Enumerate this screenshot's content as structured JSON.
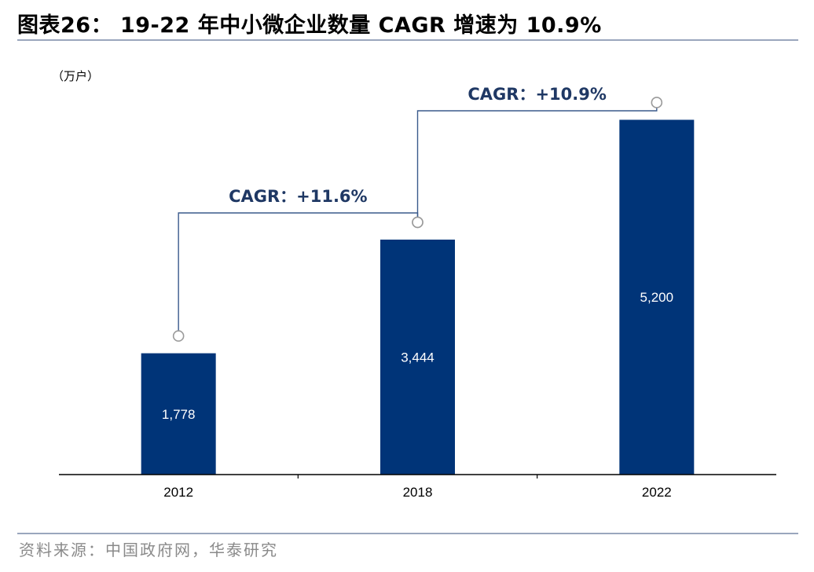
{
  "title": "图表26：  19-22 年中小微企业数量 CAGR 增速为 10.9%",
  "source": "资料来源：中国政府网，华泰研究",
  "colors": {
    "bar": "#003478",
    "bar_label": "#ffffff",
    "annotation_line": "#3a5a8c",
    "annotation_text": "#1f3864",
    "axis": "#000000",
    "rule": "#9aa6bd"
  },
  "chart_data": {
    "type": "bar",
    "unit_label": "（万户）",
    "categories": [
      "2012",
      "2018",
      "2022"
    ],
    "values": [
      1778,
      3444,
      5200
    ],
    "value_labels": [
      "1,778",
      "3,444",
      "5,200"
    ],
    "ylim": [
      0,
      6000
    ],
    "grid": false,
    "annotations": [
      {
        "label": "CAGR：+11.6%",
        "from": "2012",
        "to": "2018"
      },
      {
        "label": "CAGR：+10.9%",
        "from": "2018",
        "to": "2022"
      }
    ]
  }
}
